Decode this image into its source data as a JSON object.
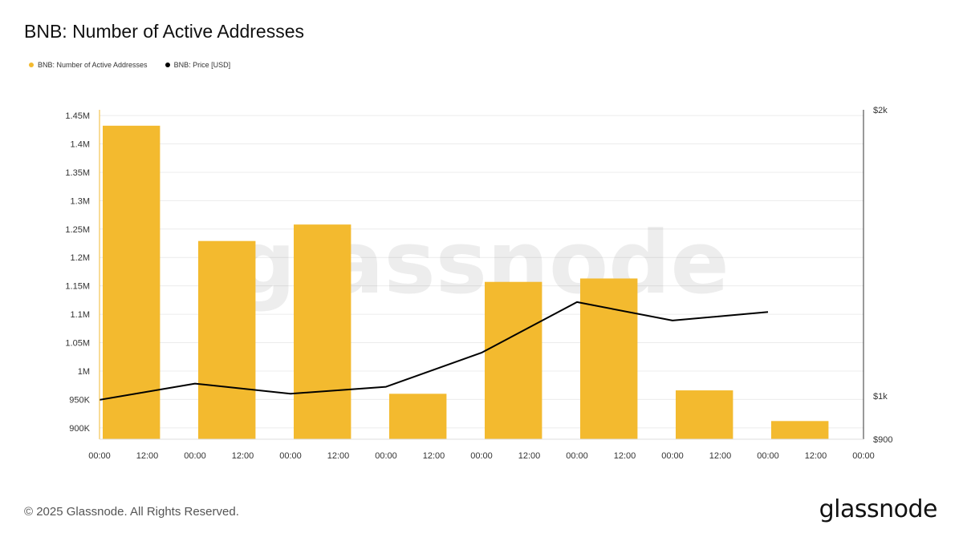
{
  "title": "BNB: Number of Active Addresses",
  "legend": [
    {
      "label": "BNB: Number of Active Addresses",
      "color": "#f3ba2f"
    },
    {
      "label": "BNB: Price [USD]",
      "color": "#000000"
    }
  ],
  "watermark": "glassnode",
  "footer": {
    "copyright": "© 2025 Glassnode. All Rights Reserved.",
    "logo": "glassnode"
  },
  "chart_data": {
    "type": "bar",
    "title": "BNB: Number of Active Addresses",
    "x_ticks": [
      "00:00",
      "12:00",
      "00:00",
      "12:00",
      "00:00",
      "12:00",
      "00:00",
      "12:00",
      "00:00",
      "12:00",
      "00:00",
      "12:00",
      "00:00",
      "12:00",
      "00:00",
      "12:00",
      "00:00"
    ],
    "left_axis": {
      "ticks": [
        "900K",
        "950K",
        "1M",
        "1.05M",
        "1.1M",
        "1.15M",
        "1.2M",
        "1.25M",
        "1.3M",
        "1.35M",
        "1.4M",
        "1.45M"
      ],
      "tick_values": [
        900000,
        950000,
        1000000,
        1050000,
        1100000,
        1150000,
        1200000,
        1250000,
        1300000,
        1350000,
        1400000,
        1450000
      ],
      "ylim": [
        880000,
        1460000
      ]
    },
    "right_axis": {
      "scale": "log",
      "ticks": [
        "$900",
        "$1k",
        "$2k"
      ],
      "tick_values": [
        900,
        1000,
        2000
      ],
      "ylim": [
        900,
        2000
      ]
    },
    "grid": true,
    "series": [
      {
        "name": "BNB: Number of Active Addresses",
        "type": "bar",
        "axis": "left",
        "color": "#f3ba2f",
        "values": [
          1432000,
          1229000,
          1258000,
          960000,
          1157000,
          1163000,
          966000,
          912000
        ]
      },
      {
        "name": "BNB: Price [USD]",
        "type": "line",
        "axis": "right",
        "color": "#000000",
        "values": [
          990,
          1030,
          1005,
          1022,
          1110,
          1255,
          1200,
          1225
        ]
      }
    ]
  }
}
